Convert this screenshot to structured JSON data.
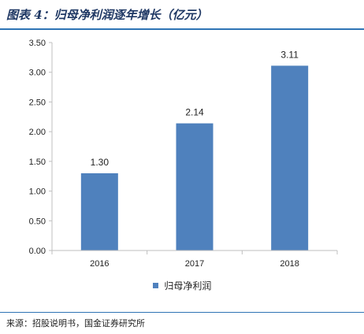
{
  "header": {
    "title": "图表 4：归母净利润逐年增长（亿元）"
  },
  "chart_data": {
    "type": "bar",
    "categories": [
      "2016",
      "2017",
      "2018"
    ],
    "series": [
      {
        "name": "归母净利润",
        "values": [
          1.3,
          2.14,
          3.11
        ],
        "labels": [
          "1.30",
          "2.14",
          "3.11"
        ],
        "color": "#4f81bd"
      }
    ],
    "y_ticks": [
      "0.00",
      "0.50",
      "1.00",
      "1.50",
      "2.00",
      "2.50",
      "3.00",
      "3.50"
    ],
    "ylim": [
      0,
      3.5
    ],
    "grid": false,
    "legend_position": "bottom"
  },
  "footer": {
    "source": "来源：招股说明书，国金证券研究所"
  }
}
